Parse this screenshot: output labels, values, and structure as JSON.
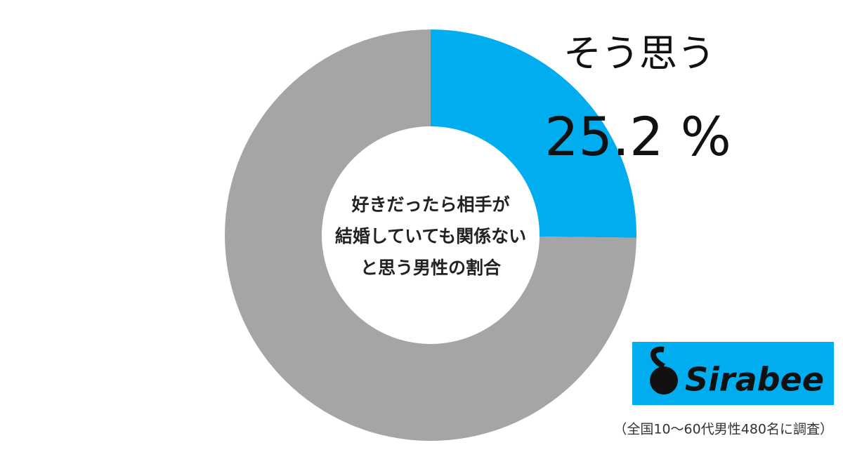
{
  "chart_data": {
    "type": "donut",
    "categories": [
      "そう思う",
      null
    ],
    "values": [
      25.2,
      74.8
    ],
    "value_labels": [
      "25.2 %",
      null
    ],
    "colors": [
      "#00aeef",
      "#a5a5a5"
    ],
    "center_text": [
      "好きだったら相手が",
      "結婚していても関係ない",
      "と思う男性の割合"
    ],
    "logo": "Sirabee",
    "note": "（全国10〜60代男性480名に調査）"
  }
}
